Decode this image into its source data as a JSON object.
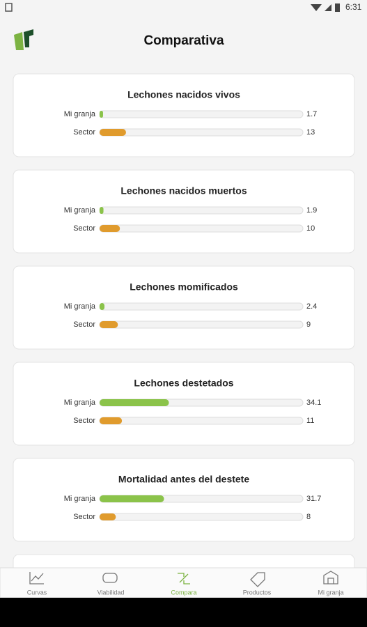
{
  "status_bar": {
    "time": "6:31"
  },
  "header": {
    "title": "Comparativa"
  },
  "chart_data": [
    {
      "type": "bar",
      "orientation": "horizontal",
      "title": "Lechones nacidos vivos",
      "categories": [
        "Mi granja",
        "Sector"
      ],
      "values": [
        1.7,
        13
      ],
      "colors": [
        "#8bc34a",
        "#e09b2d"
      ],
      "xlim": [
        0,
        100
      ]
    },
    {
      "type": "bar",
      "orientation": "horizontal",
      "title": "Lechones nacidos muertos",
      "categories": [
        "Mi granja",
        "Sector"
      ],
      "values": [
        1.9,
        10
      ],
      "colors": [
        "#8bc34a",
        "#e09b2d"
      ],
      "xlim": [
        0,
        100
      ]
    },
    {
      "type": "bar",
      "orientation": "horizontal",
      "title": "Lechones momificados",
      "categories": [
        "Mi granja",
        "Sector"
      ],
      "values": [
        2.4,
        9
      ],
      "colors": [
        "#8bc34a",
        "#e09b2d"
      ],
      "xlim": [
        0,
        100
      ]
    },
    {
      "type": "bar",
      "orientation": "horizontal",
      "title": "Lechones destetados",
      "categories": [
        "Mi granja",
        "Sector"
      ],
      "values": [
        34.1,
        11
      ],
      "colors": [
        "#8bc34a",
        "#e09b2d"
      ],
      "xlim": [
        0,
        100
      ]
    },
    {
      "type": "bar",
      "orientation": "horizontal",
      "title": "Mortalidad antes del destete",
      "categories": [
        "Mi granja",
        "Sector"
      ],
      "values": [
        31.7,
        8
      ],
      "colors": [
        "#8bc34a",
        "#e09b2d"
      ],
      "xlim": [
        0,
        100
      ]
    }
  ],
  "nav": {
    "items": [
      "Curvas",
      "Viabilidad",
      "Compara",
      "Productos",
      "Mi granja"
    ]
  }
}
